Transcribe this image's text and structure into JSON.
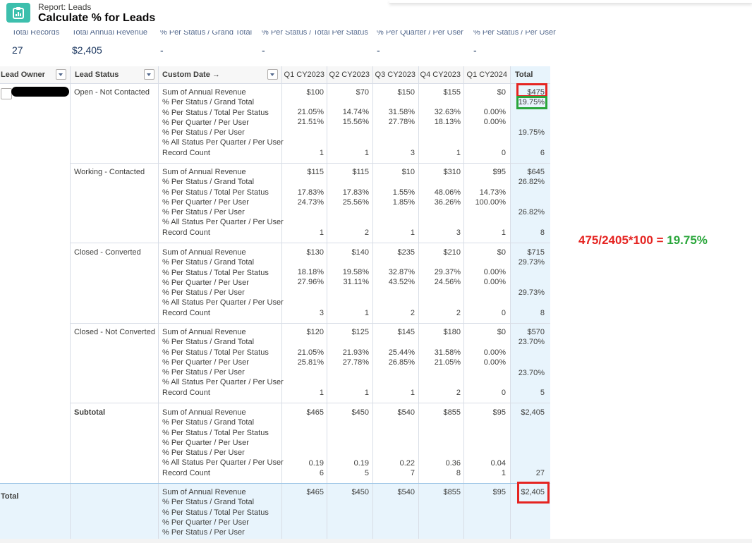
{
  "header": {
    "report_kind": "Report: Leads",
    "title": "Calculate % for Leads"
  },
  "summary": [
    {
      "label": "Total Records",
      "value": "27"
    },
    {
      "label": "Total Annual Revenue",
      "value": "$2,405"
    },
    {
      "label": "% Per Status / Grand Total",
      "value": "-"
    },
    {
      "label": "% Per Status / Total Per Status",
      "value": "-"
    },
    {
      "label": "% Per Quarter / Per User",
      "value": "-"
    },
    {
      "label": "% Per Status / Per User",
      "value": "-"
    }
  ],
  "columns": {
    "lead_owner": "Lead Owner",
    "lead_status": "Lead Status",
    "custom_date": "Custom Date →",
    "quarters": [
      "Q1 CY2023",
      "Q2 CY2023",
      "Q3 CY2023",
      "Q4 CY2023",
      "Q1 CY2024"
    ],
    "total": "Total"
  },
  "metric_labels": [
    "Sum of Annual Revenue",
    "% Per Status / Grand Total",
    "% Per Status / Total Per Status",
    "% Per Quarter / Per User",
    "% Per Status / Per User",
    "% All Status Per Quarter / Per User",
    "Record Count"
  ],
  "groups": [
    {
      "status": "Open - Not Contacted",
      "revenue": [
        "$100",
        "$70",
        "$150",
        "$155",
        "$0"
      ],
      "revenue_total": "$475",
      "pct_grand_total": "19.75%",
      "pct_status": [
        "21.05%",
        "14.74%",
        "31.58%",
        "32.63%",
        "0.00%"
      ],
      "pct_quarter": [
        "21.51%",
        "15.56%",
        "27.78%",
        "18.13%",
        "0.00%"
      ],
      "pct_status_user_total": "19.75%",
      "count": [
        "1",
        "1",
        "3",
        "1",
        "0"
      ],
      "count_total": "6"
    },
    {
      "status": "Working - Contacted",
      "revenue": [
        "$115",
        "$115",
        "$10",
        "$310",
        "$95"
      ],
      "revenue_total": "$645",
      "pct_grand_total": "26.82%",
      "pct_status": [
        "17.83%",
        "17.83%",
        "1.55%",
        "48.06%",
        "14.73%"
      ],
      "pct_quarter": [
        "24.73%",
        "25.56%",
        "1.85%",
        "36.26%",
        "100.00%"
      ],
      "pct_status_user_total": "26.82%",
      "count": [
        "1",
        "2",
        "1",
        "3",
        "1"
      ],
      "count_total": "8"
    },
    {
      "status": "Closed - Converted",
      "revenue": [
        "$130",
        "$140",
        "$235",
        "$210",
        "$0"
      ],
      "revenue_total": "$715",
      "pct_grand_total": "29.73%",
      "pct_status": [
        "18.18%",
        "19.58%",
        "32.87%",
        "29.37%",
        "0.00%"
      ],
      "pct_quarter": [
        "27.96%",
        "31.11%",
        "43.52%",
        "24.56%",
        "0.00%"
      ],
      "pct_status_user_total": "29.73%",
      "count": [
        "3",
        "1",
        "2",
        "2",
        "0"
      ],
      "count_total": "8"
    },
    {
      "status": "Closed - Not Converted",
      "revenue": [
        "$120",
        "$125",
        "$145",
        "$180",
        "$0"
      ],
      "revenue_total": "$570",
      "pct_grand_total": "23.70%",
      "pct_status": [
        "21.05%",
        "21.93%",
        "25.44%",
        "31.58%",
        "0.00%"
      ],
      "pct_quarter": [
        "25.81%",
        "27.78%",
        "26.85%",
        "21.05%",
        "0.00%"
      ],
      "pct_status_user_total": "23.70%",
      "count": [
        "1",
        "1",
        "1",
        "2",
        "0"
      ],
      "count_total": "5"
    }
  ],
  "subtotal": {
    "label": "Subtotal",
    "revenue": [
      "$465",
      "$450",
      "$540",
      "$855",
      "$95"
    ],
    "revenue_total": "$2,405",
    "all_status": [
      "0.19",
      "0.19",
      "0.22",
      "0.36",
      "0.04"
    ],
    "count": [
      "6",
      "5",
      "7",
      "8",
      "1"
    ],
    "count_total": "27"
  },
  "total_row": {
    "label": "Total",
    "revenue": [
      "$465",
      "$450",
      "$540",
      "$855",
      "$95"
    ],
    "revenue_total": "$2,405"
  },
  "annotation": {
    "formula": "475/2405*100 = ",
    "result": "19.75%"
  },
  "colors": {
    "highlight_red": "#e52421",
    "highlight_green": "#2aa63b",
    "total_column": "#e8f4fc",
    "brand": "#3dbfad"
  }
}
